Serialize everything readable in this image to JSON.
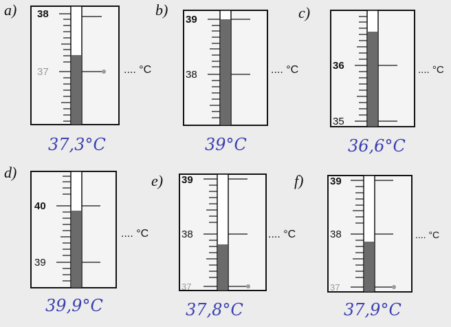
{
  "unit_placeholder": ".... °C",
  "thermometers": [
    {
      "letter": "a)",
      "labels": [
        "38",
        "37"
      ],
      "reading_label": "37",
      "fill_level": 37.3,
      "handwritten_answer": "37,3°C"
    },
    {
      "letter": "b)",
      "labels": [
        "39",
        "38"
      ],
      "reading_label": null,
      "fill_level": 39.0,
      "handwritten_answer": "39°C"
    },
    {
      "letter": "c)",
      "labels": [
        "36",
        "35"
      ],
      "reading_label": null,
      "fill_level": 36.6,
      "handwritten_answer": "36,6°C"
    },
    {
      "letter": "d)",
      "labels": [
        "40",
        "39"
      ],
      "reading_label": null,
      "fill_level": 39.9,
      "handwritten_answer": "39,9°C"
    },
    {
      "letter": "e)",
      "labels": [
        "39",
        "38",
        "37"
      ],
      "reading_label": "37",
      "fill_level": 37.8,
      "handwritten_answer": "37,8°C"
    },
    {
      "letter": "f)",
      "labels": [
        "39",
        "38",
        "37"
      ],
      "reading_label": "37",
      "fill_level": 37.9,
      "handwritten_answer": "37,9°C"
    }
  ],
  "colors": {
    "ink": "#111111",
    "handwriting": "#3a3fb0",
    "mercury": "#6b6b6b",
    "faded_label": "#9a9a9a"
  }
}
